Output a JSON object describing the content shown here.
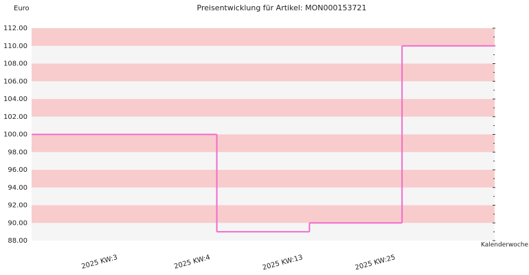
{
  "chart_data": {
    "type": "step",
    "title": "Preisentwicklung für Artikel: MON000153721",
    "y_label": "Euro",
    "x_label": "Kalenderwoche",
    "categories": [
      "2025 KW:3",
      "2025 KW:4",
      "2025 KW:13",
      "2025 KW:25"
    ],
    "values": [
      100,
      89,
      90,
      110
    ],
    "color": "#f06ccb",
    "band_colors": [
      "#f8cccc",
      "#f5f5f5"
    ],
    "ylim": [
      88,
      112
    ],
    "yticks": [
      {
        "value": 88,
        "label": "88.00"
      },
      {
        "value": 90,
        "label": "90.00"
      },
      {
        "value": 92,
        "label": "92.00"
      },
      {
        "value": 94,
        "label": "94.00"
      },
      {
        "value": 96,
        "label": "96.00"
      },
      {
        "value": 98,
        "label": "98.00"
      },
      {
        "value": 100,
        "label": "100.00"
      },
      {
        "value": 102,
        "label": "102.00"
      },
      {
        "value": 104,
        "label": "104.00"
      },
      {
        "value": 106,
        "label": "106.00"
      },
      {
        "value": 108,
        "label": "108.00"
      },
      {
        "value": 110,
        "label": "110.00"
      },
      {
        "value": 112,
        "label": "112.00"
      }
    ]
  }
}
